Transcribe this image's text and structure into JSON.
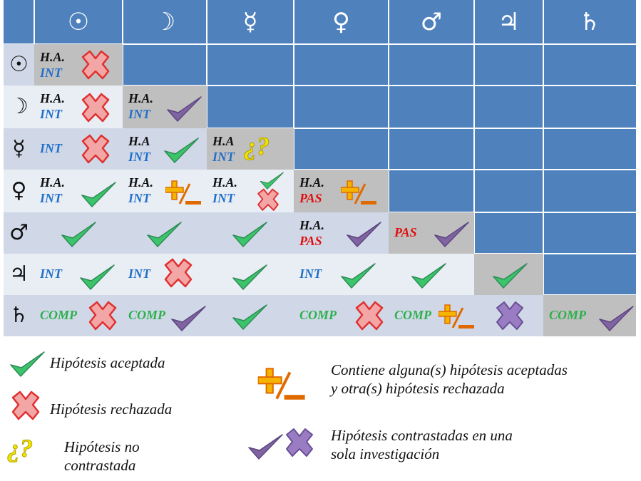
{
  "header": {
    "columns": [
      "☉",
      "☽",
      "☿",
      "♀",
      "♂",
      "♃",
      "♄"
    ]
  },
  "table": {
    "rows": [
      {
        "symbol": "☉",
        "cells": [
          [
            "H.A.",
            "INT"
          ]
        ]
      },
      {
        "symbol": "☽",
        "cells": [
          [
            "H.A.",
            "INT"
          ],
          [
            "H.A.",
            "INT"
          ]
        ]
      },
      {
        "symbol": "☿",
        "cells": [
          [
            "INT"
          ],
          [
            "H.A",
            "INT"
          ],
          [
            "H.A",
            "INT",
            "¿?"
          ]
        ]
      },
      {
        "symbol": "♀",
        "cells": [
          [
            "H.A.",
            "INT"
          ],
          [
            "H.A.",
            "INT"
          ],
          [
            "H.A.",
            "INT"
          ],
          [
            "H.A.",
            "PAS"
          ]
        ]
      },
      {
        "symbol": "♂",
        "cells": [
          [],
          [],
          [],
          [
            "H.A.",
            "PAS"
          ],
          [
            "PAS"
          ]
        ]
      },
      {
        "symbol": "♃",
        "cells": [
          [
            "INT"
          ],
          [
            "INT"
          ],
          [],
          [
            "INT"
          ],
          [],
          []
        ]
      },
      {
        "symbol": "♄",
        "cells": [
          [
            "COMP"
          ],
          [
            "COMP"
          ],
          [],
          [
            "COMP"
          ],
          [
            "COMP"
          ],
          [],
          [
            "COMP"
          ]
        ]
      }
    ]
  },
  "legend": {
    "accepted": "Hipótesis aceptada",
    "rejected": "Hipótesis rechazada",
    "untested_icon": "¿?",
    "untested": [
      "Hipótesis no",
      "contrastada"
    ],
    "mixed": [
      "Contiene alguna(s) hipótesis  aceptadas",
      "y otra(s) hipótesis rechazada"
    ],
    "single": [
      "Hipótesis contrastadas en una",
      "sola investigación"
    ]
  }
}
